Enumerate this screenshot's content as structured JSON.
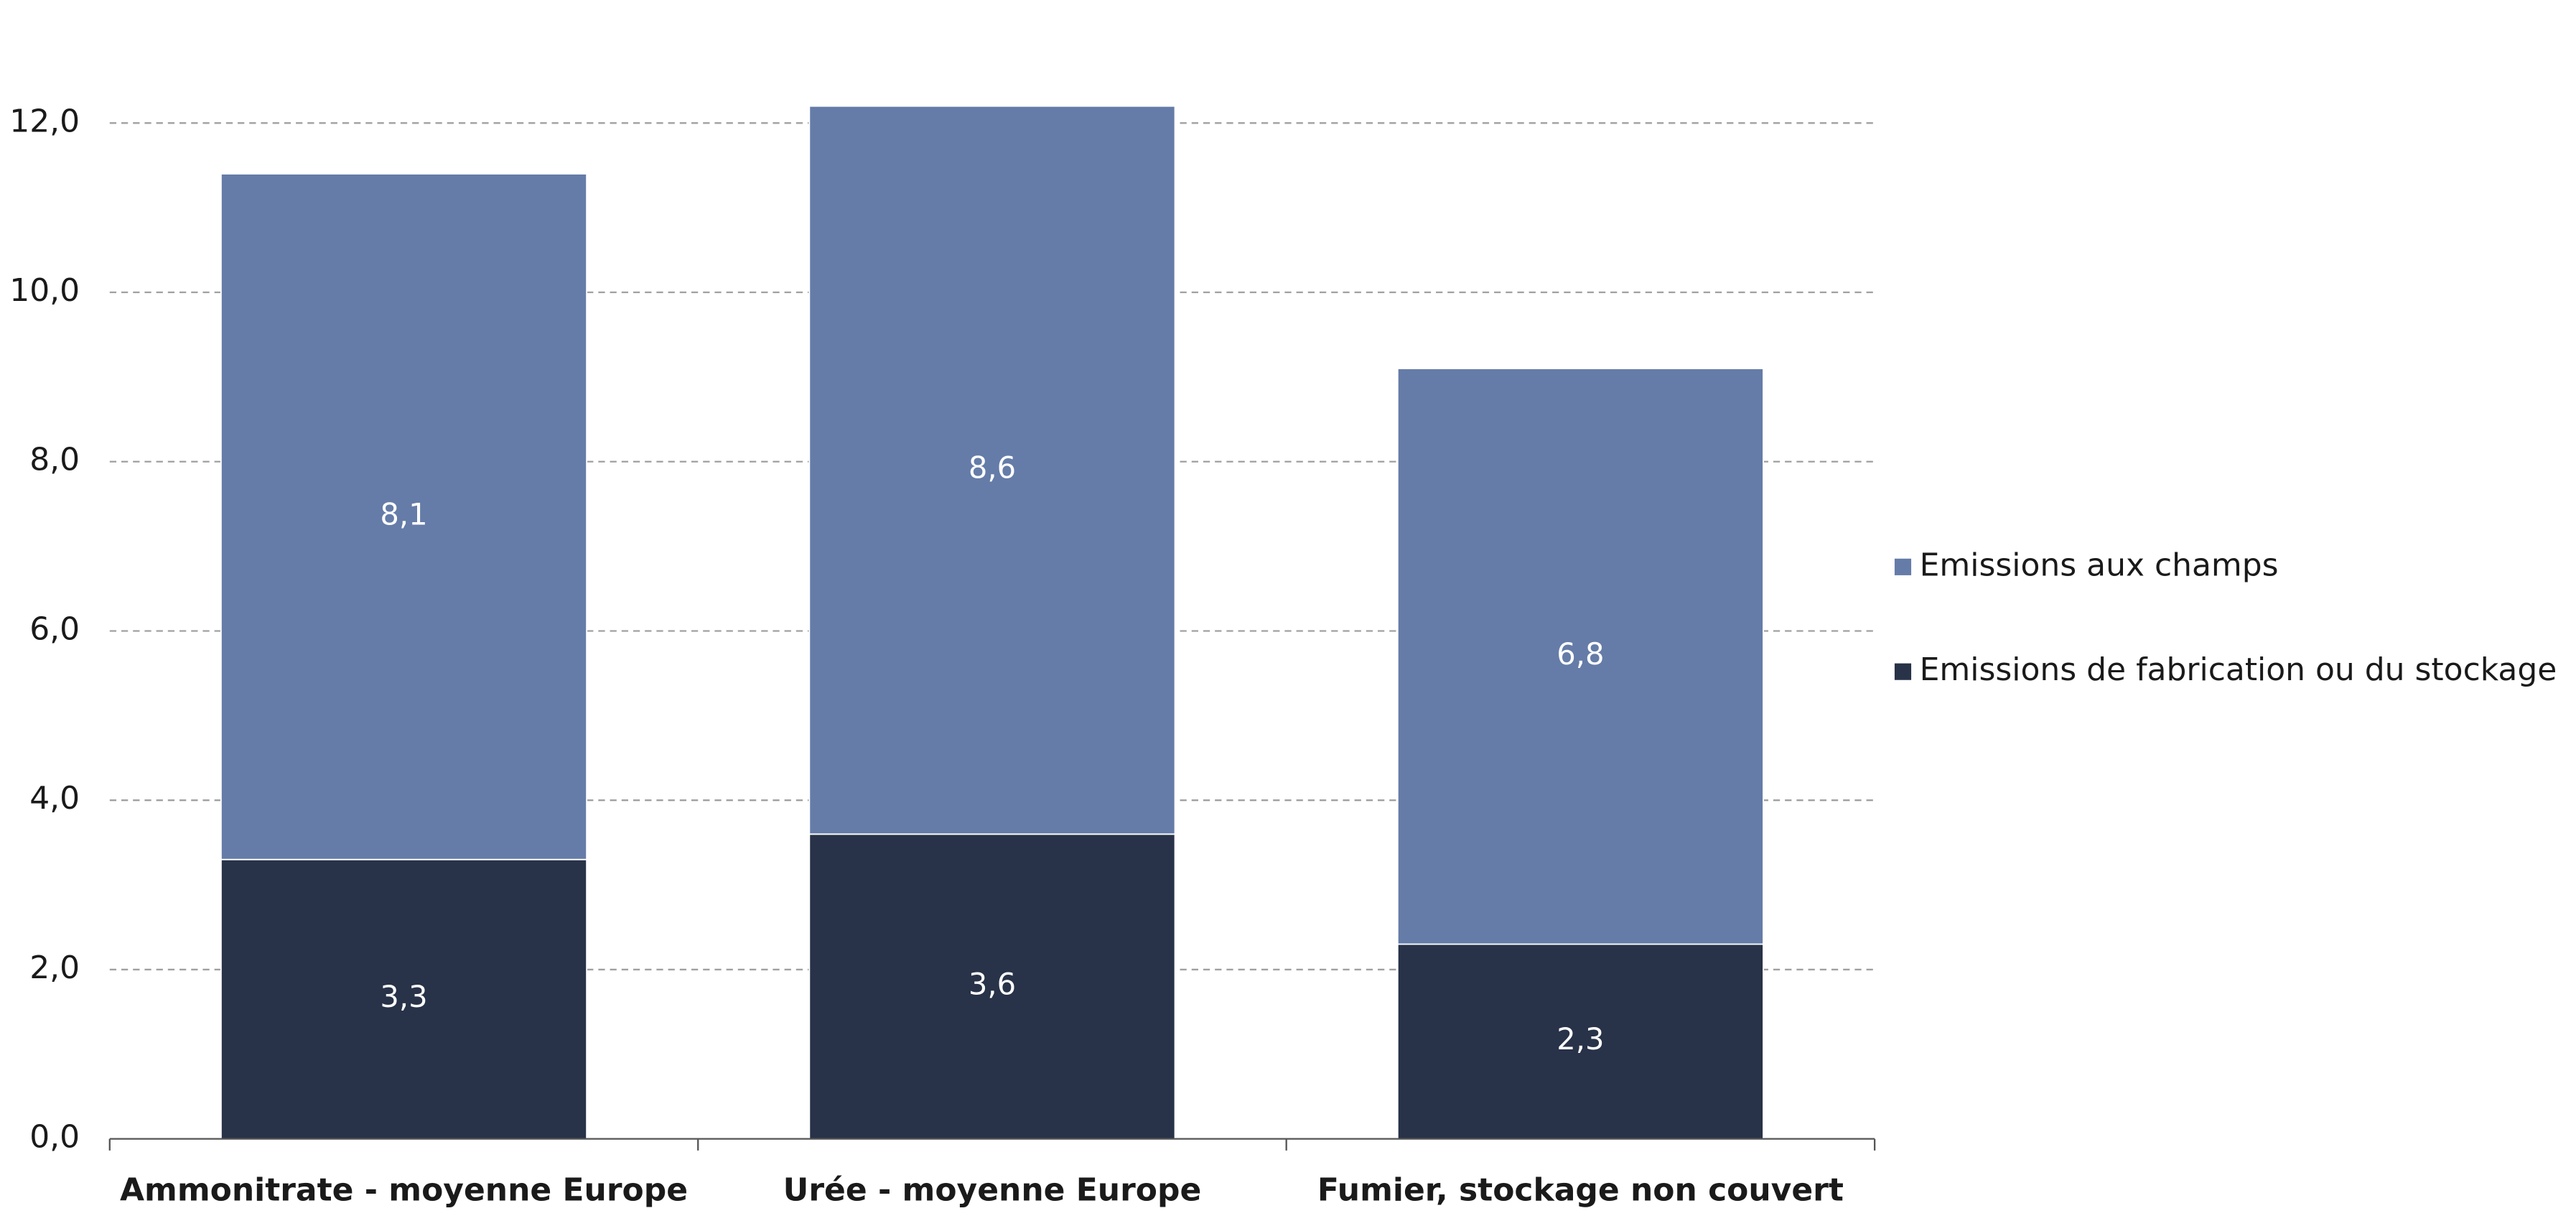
{
  "chart_data": {
    "type": "stacked-bar",
    "categories": [
      "Ammonitrate - moyenne Europe",
      "Urée - moyenne Europe",
      "Fumier, stockage non couvert"
    ],
    "series": [
      {
        "name": "Emissions de fabrication ou du stockage",
        "color": "#283248",
        "values": [
          3.3,
          3.6,
          2.3
        ],
        "value_labels": [
          "3,3",
          "3,6",
          "2,3"
        ]
      },
      {
        "name": "Emissions aux champs",
        "color": "#657ca8",
        "values": [
          8.1,
          8.6,
          6.8
        ],
        "value_labels": [
          "8,1",
          "8,6",
          "6,8"
        ]
      }
    ],
    "ylim": [
      0,
      12
    ],
    "yticks": [
      {
        "value": 0,
        "label": "0,0"
      },
      {
        "value": 2,
        "label": "2,0"
      },
      {
        "value": 4,
        "label": "4,0"
      },
      {
        "value": 6,
        "label": "6,0"
      },
      {
        "value": 8,
        "label": "8,0"
      },
      {
        "value": 10,
        "label": "10,0"
      },
      {
        "value": 12,
        "label": "12,0"
      }
    ],
    "grid": true,
    "legend": "right"
  }
}
